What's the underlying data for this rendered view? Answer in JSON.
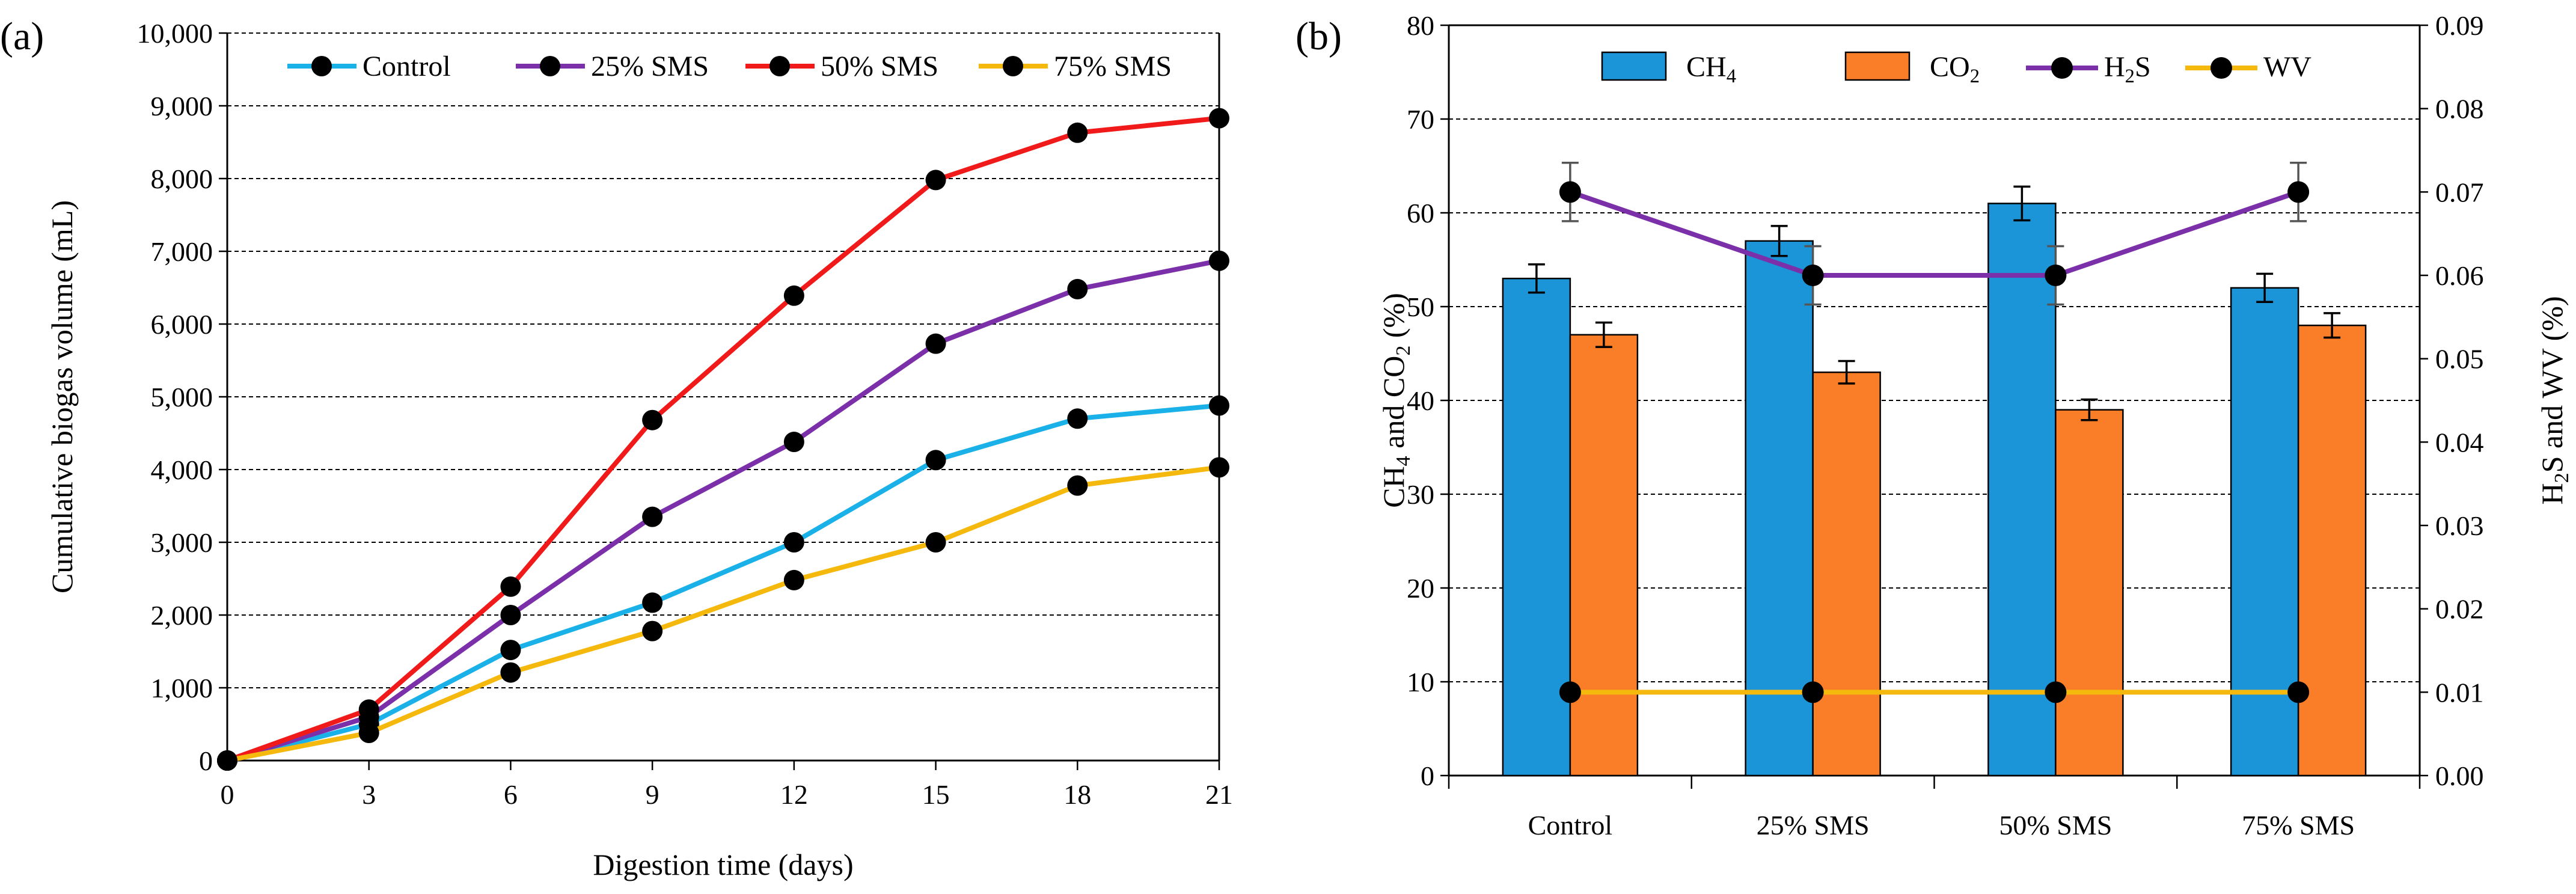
{
  "chart_data": [
    {
      "type": "line",
      "panel_label": "(a)",
      "title": "",
      "xlabel": "Digestion time (days)",
      "ylabel": "Cumulative biogas volume (mL)",
      "x": [
        0,
        3,
        6,
        9,
        12,
        15,
        18,
        21
      ],
      "x_tick_labels": [
        "0",
        "3",
        "6",
        "9",
        "12",
        "15",
        "18",
        "21"
      ],
      "xlim": [
        0,
        21
      ],
      "ylim": [
        0,
        10000
      ],
      "y_tick_labels": [
        "0",
        "1,000",
        "2,000",
        "3,000",
        "4,000",
        "5,000",
        "6,000",
        "7,000",
        "8,000",
        "9,000",
        "10,000"
      ],
      "grid": "horizontal dashed",
      "legend_position": "top",
      "series": [
        {
          "name": "Control",
          "color": "#1ab0e8",
          "values": [
            0,
            500,
            1520,
            2170,
            3000,
            4130,
            4700,
            4880
          ]
        },
        {
          "name": "25% SMS",
          "color": "#7b2fa8",
          "values": [
            0,
            600,
            2000,
            3350,
            4380,
            5730,
            6480,
            6870
          ]
        },
        {
          "name": "50% SMS",
          "color": "#f01a1a",
          "values": [
            0,
            700,
            2390,
            4680,
            6390,
            7980,
            8630,
            8830
          ]
        },
        {
          "name": "75% SMS",
          "color": "#f5b90e",
          "values": [
            0,
            380,
            1210,
            1780,
            2480,
            3000,
            3780,
            4030
          ]
        }
      ]
    },
    {
      "type": "bar",
      "panel_label": "(b)",
      "title": "",
      "categories": [
        "Control",
        "25% SMS",
        "50% SMS",
        "75% SMS"
      ],
      "ylabel_left_parts": [
        "CH",
        "4",
        " and CO",
        "2",
        " (%)"
      ],
      "ylabel_right_parts": [
        "H",
        "2",
        "S and WV (%)"
      ],
      "ylim_left": [
        0,
        80
      ],
      "y_tick_labels_left": [
        "0",
        "10",
        "20",
        "30",
        "40",
        "50",
        "60",
        "70",
        "80"
      ],
      "ylim_right": [
        0,
        0.09
      ],
      "y_tick_labels_right": [
        "0.00",
        "0.01",
        "0.02",
        "0.03",
        "0.04",
        "0.05",
        "0.06",
        "0.07",
        "0.08",
        "0.09"
      ],
      "grid": "horizontal dashed",
      "legend_position": "top",
      "bar_series": [
        {
          "name": "CH4",
          "legend_parts": [
            "CH",
            "4"
          ],
          "color": "#1c95d8",
          "values": [
            53,
            57,
            61,
            52
          ],
          "errors": [
            1.5,
            1.6,
            1.8,
            1.5
          ]
        },
        {
          "name": "CO2",
          "legend_parts": [
            "CO",
            "2"
          ],
          "color": "#fa7d27",
          "values": [
            47,
            43,
            39,
            48
          ],
          "errors": [
            1.3,
            1.2,
            1.1,
            1.3
          ]
        }
      ],
      "line_series": [
        {
          "name": "H2S",
          "legend_parts": [
            "H",
            "2",
            "S"
          ],
          "color": "#7b2fa8",
          "axis": "right",
          "values": [
            0.07,
            0.06,
            0.06,
            0.07
          ],
          "errors": [
            0.0035,
            0.0035,
            0.0035,
            0.0035
          ]
        },
        {
          "name": "WV",
          "legend_parts": [
            "WV"
          ],
          "color": "#f5b90e",
          "axis": "right",
          "values": [
            0.01,
            0.01,
            0.01,
            0.01
          ]
        }
      ]
    }
  ]
}
